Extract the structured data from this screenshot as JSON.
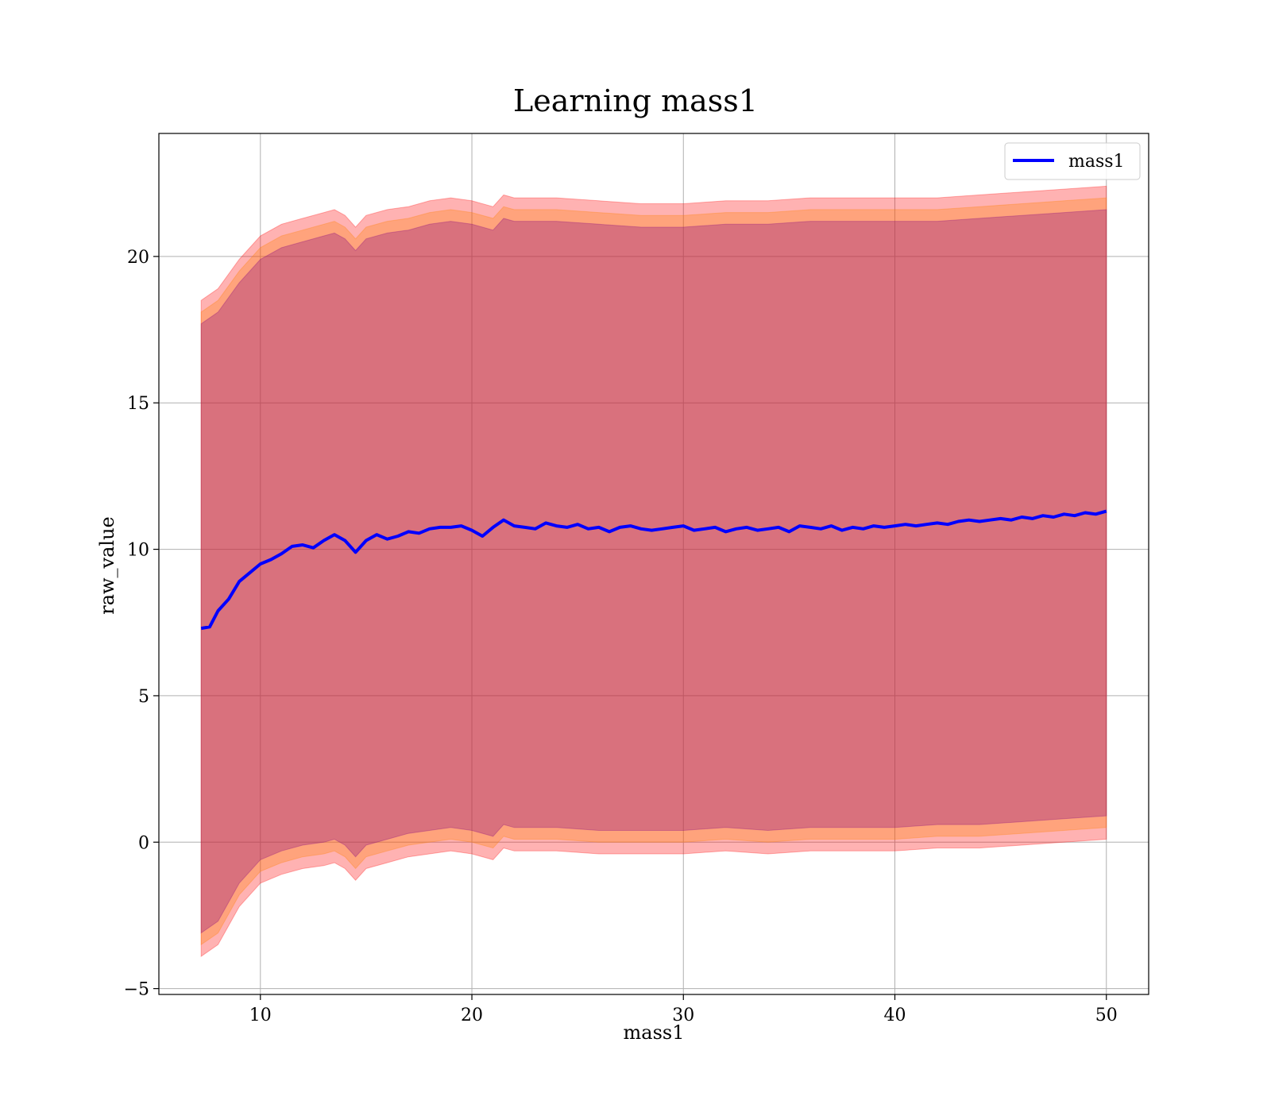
{
  "chart_data": {
    "type": "line",
    "title": "Learning mass1",
    "xlabel": "mass1",
    "ylabel": "raw_value",
    "xlim": [
      5.2,
      52
    ],
    "ylim": [
      -5.2,
      24.2
    ],
    "xticks": [
      10,
      20,
      30,
      40,
      50
    ],
    "yticks": [
      -5,
      0,
      5,
      10,
      15,
      20
    ],
    "xtick_labels": [
      "10",
      "20",
      "30",
      "40",
      "50"
    ],
    "ytick_labels": [
      "−5",
      "0",
      "5",
      "10",
      "15",
      "20"
    ],
    "grid": true,
    "legend": {
      "position": "top-right",
      "entries": [
        "mass1"
      ]
    },
    "series": [
      {
        "name": "mass1",
        "color": "#0000ff",
        "x": [
          7.2,
          7.6,
          8.0,
          8.5,
          9.0,
          9.5,
          10.0,
          10.5,
          11.0,
          11.5,
          12.0,
          12.5,
          13.0,
          13.5,
          14.0,
          14.5,
          15.0,
          15.5,
          16.0,
          16.5,
          17.0,
          17.5,
          18.0,
          18.5,
          19.0,
          19.5,
          20.0,
          20.5,
          21.0,
          21.5,
          22.0,
          22.5,
          23.0,
          23.5,
          24.0,
          24.5,
          25.0,
          25.5,
          26.0,
          26.5,
          27.0,
          27.5,
          28.0,
          28.5,
          29.0,
          29.5,
          30.0,
          30.5,
          31.0,
          31.5,
          32.0,
          32.5,
          33.0,
          33.5,
          34.0,
          34.5,
          35.0,
          35.5,
          36.0,
          36.5,
          37.0,
          37.5,
          38.0,
          38.5,
          39.0,
          39.5,
          40.0,
          40.5,
          41.0,
          41.5,
          42.0,
          42.5,
          43.0,
          43.5,
          44.0,
          44.5,
          45.0,
          45.5,
          46.0,
          46.5,
          47.0,
          47.5,
          48.0,
          48.5,
          49.0,
          49.5,
          50.0
        ],
        "y": [
          7.3,
          7.35,
          7.9,
          8.3,
          8.9,
          9.2,
          9.5,
          9.65,
          9.85,
          10.1,
          10.15,
          10.05,
          10.3,
          10.5,
          10.3,
          9.9,
          10.3,
          10.5,
          10.35,
          10.45,
          10.6,
          10.55,
          10.7,
          10.75,
          10.75,
          10.8,
          10.65,
          10.45,
          10.75,
          11.0,
          10.8,
          10.75,
          10.7,
          10.9,
          10.8,
          10.75,
          10.85,
          10.7,
          10.75,
          10.6,
          10.75,
          10.8,
          10.7,
          10.65,
          10.7,
          10.75,
          10.8,
          10.65,
          10.7,
          10.75,
          10.6,
          10.7,
          10.75,
          10.65,
          10.7,
          10.75,
          10.6,
          10.8,
          10.75,
          10.7,
          10.8,
          10.65,
          10.75,
          10.7,
          10.8,
          10.75,
          10.8,
          10.85,
          10.8,
          10.85,
          10.9,
          10.85,
          10.95,
          11.0,
          10.95,
          11.0,
          11.05,
          11.0,
          11.1,
          11.05,
          11.15,
          11.1,
          11.2,
          11.15,
          11.25,
          11.2,
          11.3
        ]
      }
    ],
    "bands": [
      {
        "color": "#ff0000",
        "alpha": 0.3,
        "x": [
          7.2,
          8.0,
          9.0,
          10.0,
          11.0,
          12.0,
          13.0,
          13.5,
          14.0,
          14.5,
          15.0,
          16.0,
          17.0,
          18.0,
          19.0,
          20.0,
          21.0,
          21.5,
          22.0,
          24.0,
          26.0,
          28.0,
          30.0,
          32.0,
          34.0,
          36.0,
          38.0,
          40.0,
          42.0,
          44.0,
          46.0,
          48.0,
          50.0
        ],
        "upper": [
          18.5,
          18.9,
          19.9,
          20.7,
          21.1,
          21.3,
          21.5,
          21.6,
          21.4,
          21.0,
          21.4,
          21.6,
          21.7,
          21.9,
          22.0,
          21.9,
          21.7,
          22.1,
          22.0,
          22.0,
          21.9,
          21.8,
          21.8,
          21.9,
          21.9,
          22.0,
          22.0,
          22.0,
          22.0,
          22.1,
          22.2,
          22.3,
          22.4
        ],
        "lower": [
          -3.9,
          -3.5,
          -2.2,
          -1.4,
          -1.1,
          -0.9,
          -0.8,
          -0.7,
          -0.9,
          -1.3,
          -0.9,
          -0.7,
          -0.5,
          -0.4,
          -0.3,
          -0.4,
          -0.6,
          -0.2,
          -0.3,
          -0.3,
          -0.4,
          -0.4,
          -0.4,
          -0.3,
          -0.4,
          -0.3,
          -0.3,
          -0.3,
          -0.2,
          -0.2,
          -0.1,
          0.0,
          0.1
        ]
      },
      {
        "color": "#ff8000",
        "alpha": 0.3,
        "x": [
          7.2,
          8.0,
          9.0,
          10.0,
          11.0,
          12.0,
          13.0,
          13.5,
          14.0,
          14.5,
          15.0,
          16.0,
          17.0,
          18.0,
          19.0,
          20.0,
          21.0,
          21.5,
          22.0,
          24.0,
          26.0,
          28.0,
          30.0,
          32.0,
          34.0,
          36.0,
          38.0,
          40.0,
          42.0,
          44.0,
          46.0,
          48.0,
          50.0
        ],
        "upper": [
          18.1,
          18.5,
          19.5,
          20.3,
          20.7,
          20.9,
          21.1,
          21.2,
          21.0,
          20.6,
          21.0,
          21.2,
          21.3,
          21.5,
          21.6,
          21.5,
          21.3,
          21.7,
          21.6,
          21.6,
          21.5,
          21.4,
          21.4,
          21.5,
          21.5,
          21.6,
          21.6,
          21.6,
          21.6,
          21.7,
          21.8,
          21.9,
          22.0
        ],
        "lower": [
          -3.5,
          -3.1,
          -1.8,
          -1.0,
          -0.7,
          -0.5,
          -0.4,
          -0.3,
          -0.5,
          -0.9,
          -0.5,
          -0.3,
          -0.1,
          0.0,
          0.1,
          0.0,
          -0.2,
          0.2,
          0.1,
          0.1,
          0.0,
          0.0,
          0.0,
          0.1,
          0.0,
          0.1,
          0.1,
          0.1,
          0.2,
          0.2,
          0.3,
          0.4,
          0.5
        ]
      },
      {
        "color": "#800080",
        "alpha": 0.3,
        "x": [
          7.2,
          8.0,
          9.0,
          10.0,
          11.0,
          12.0,
          13.0,
          13.5,
          14.0,
          14.5,
          15.0,
          16.0,
          17.0,
          18.0,
          19.0,
          20.0,
          21.0,
          21.5,
          22.0,
          24.0,
          26.0,
          28.0,
          30.0,
          32.0,
          34.0,
          36.0,
          38.0,
          40.0,
          42.0,
          44.0,
          46.0,
          48.0,
          50.0
        ],
        "upper": [
          17.7,
          18.1,
          19.1,
          19.9,
          20.3,
          20.5,
          20.7,
          20.8,
          20.6,
          20.2,
          20.6,
          20.8,
          20.9,
          21.1,
          21.2,
          21.1,
          20.9,
          21.3,
          21.2,
          21.2,
          21.1,
          21.0,
          21.0,
          21.1,
          21.1,
          21.2,
          21.2,
          21.2,
          21.2,
          21.3,
          21.4,
          21.5,
          21.6
        ],
        "lower": [
          -3.1,
          -2.7,
          -1.4,
          -0.6,
          -0.3,
          -0.1,
          0.0,
          0.1,
          -0.1,
          -0.5,
          -0.1,
          0.1,
          0.3,
          0.4,
          0.5,
          0.4,
          0.2,
          0.6,
          0.5,
          0.5,
          0.4,
          0.4,
          0.4,
          0.5,
          0.4,
          0.5,
          0.5,
          0.5,
          0.6,
          0.6,
          0.7,
          0.8,
          0.9
        ]
      }
    ]
  }
}
